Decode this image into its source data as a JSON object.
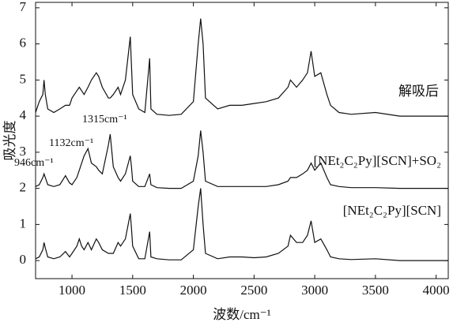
{
  "chart_data": {
    "type": "line",
    "xlabel": "波数/cm⁻¹",
    "ylabel": "吸光度",
    "annotations": [
      "1315cm⁻¹",
      "1132cm⁻¹",
      "946cm⁻¹"
    ],
    "x": [
      700,
      730,
      760,
      770,
      780,
      800,
      850,
      900,
      946,
      980,
      1000,
      1040,
      1060,
      1080,
      1100,
      1132,
      1160,
      1200,
      1220,
      1250,
      1300,
      1315,
      1340,
      1380,
      1400,
      1440,
      1480,
      1490,
      1500,
      1550,
      1600,
      1640,
      1650,
      1700,
      1800,
      1900,
      2000,
      2040,
      2060,
      2080,
      2100,
      2200,
      2300,
      2400,
      2500,
      2600,
      2700,
      2780,
      2800,
      2850,
      2900,
      2940,
      2970,
      3000,
      3050,
      3100,
      3130,
      3200,
      3300,
      3500,
      3700,
      3900,
      4000,
      4100
    ],
    "series": [
      {
        "name": "[NEt₂C₂Py][SCN]",
        "color": "#111111",
        "values": [
          0.05,
          0.1,
          0.3,
          0.5,
          0.35,
          0.1,
          0.05,
          0.1,
          0.25,
          0.1,
          0.2,
          0.4,
          0.6,
          0.4,
          0.3,
          0.5,
          0.3,
          0.6,
          0.5,
          0.3,
          0.2,
          0.2,
          0.2,
          0.5,
          0.4,
          0.6,
          1.3,
          0.9,
          0.4,
          0.05,
          0.05,
          0.8,
          0.1,
          0.05,
          0.02,
          0.02,
          0.3,
          1.5,
          2.0,
          1.0,
          0.2,
          0.05,
          0.1,
          0.1,
          0.08,
          0.1,
          0.2,
          0.4,
          0.7,
          0.5,
          0.5,
          0.7,
          1.1,
          0.5,
          0.6,
          0.3,
          0.1,
          0.05,
          0.03,
          0.05,
          0,
          0,
          0,
          0
        ]
      },
      {
        "name": "[NEt₂C₂Py][SCN]+SO₂",
        "color": "#111111",
        "values": [
          2.05,
          2.1,
          2.3,
          2.4,
          2.3,
          2.1,
          2.05,
          2.1,
          2.35,
          2.15,
          2.1,
          2.3,
          2.5,
          2.7,
          2.9,
          3.1,
          2.7,
          2.6,
          2.5,
          2.4,
          3.2,
          3.5,
          2.6,
          2.3,
          2.2,
          2.4,
          2.9,
          2.6,
          2.2,
          2.05,
          2.05,
          2.4,
          2.1,
          2.02,
          2.0,
          2.0,
          2.2,
          2.9,
          3.6,
          3.0,
          2.2,
          2.05,
          2.05,
          2.05,
          2.05,
          2.05,
          2.1,
          2.2,
          2.3,
          2.3,
          2.4,
          2.5,
          2.7,
          2.5,
          2.7,
          2.3,
          2.1,
          2.05,
          2.02,
          2.02,
          2.0,
          2.0,
          2.0,
          2.0
        ]
      },
      {
        "name": "解吸后",
        "color": "#111111",
        "values": [
          4.1,
          4.4,
          4.6,
          5.0,
          4.6,
          4.2,
          4.1,
          4.2,
          4.3,
          4.3,
          4.5,
          4.7,
          4.8,
          4.7,
          4.6,
          4.8,
          5.0,
          5.2,
          5.1,
          4.8,
          4.5,
          4.5,
          4.6,
          4.8,
          4.6,
          5.0,
          6.2,
          5.4,
          4.6,
          4.2,
          4.1,
          5.6,
          4.2,
          4.05,
          4.02,
          4.05,
          4.4,
          6.0,
          6.7,
          6.0,
          4.5,
          4.2,
          4.3,
          4.3,
          4.35,
          4.4,
          4.5,
          4.8,
          5.0,
          4.8,
          5.0,
          5.2,
          5.8,
          5.1,
          5.2,
          4.6,
          4.3,
          4.1,
          4.05,
          4.1,
          4.0,
          4.0,
          4.0,
          4.0
        ]
      }
    ],
    "xlim": [
      700,
      4100
    ],
    "ylim": [
      -0.5,
      7.15
    ],
    "xticks": [
      1000,
      1500,
      2000,
      2500,
      3000,
      3500,
      4000
    ],
    "yticks": [
      0,
      1,
      2,
      3,
      4,
      5,
      6,
      7
    ],
    "grid": false
  }
}
